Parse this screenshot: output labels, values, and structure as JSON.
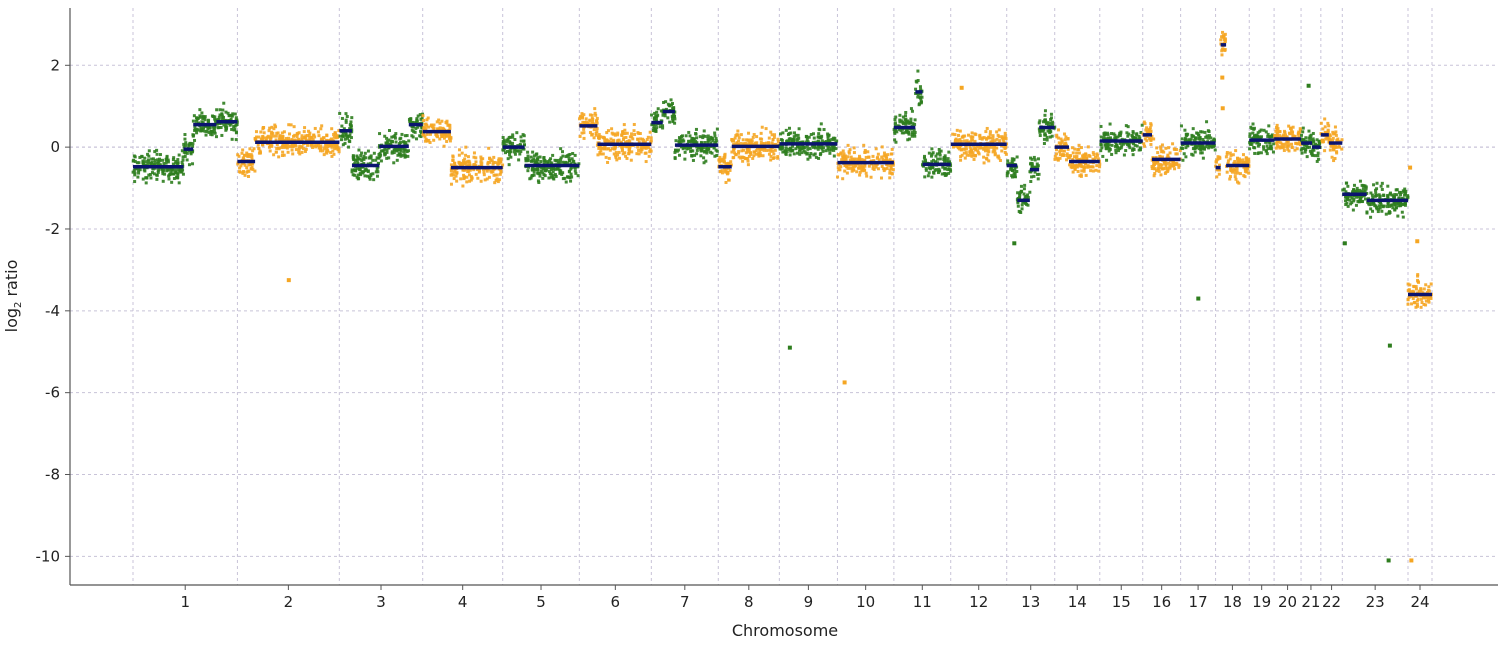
{
  "chart_data": {
    "type": "scatter",
    "title": "",
    "xlabel": "Chromosome",
    "ylabel_main": "log",
    "ylabel_sub": "2",
    "ylabel_tail": " ratio",
    "ylim": [
      -10.7,
      3.4
    ],
    "yticks": [
      2,
      0,
      -2,
      -4,
      -6,
      -8,
      -10
    ],
    "ytick_labels": [
      "2",
      "0",
      "-2",
      "-4",
      "-6",
      "-8",
      "-10"
    ],
    "grid": true,
    "x_unit": "genomic position (Mb, concatenated)",
    "chromosomes": [
      {
        "label": "1",
        "start": 0,
        "end": 248
      },
      {
        "label": "2",
        "start": 248,
        "end": 490
      },
      {
        "label": "3",
        "start": 490,
        "end": 688
      },
      {
        "label": "4",
        "start": 688,
        "end": 878
      },
      {
        "label": "5",
        "start": 878,
        "end": 1060
      },
      {
        "label": "6",
        "start": 1060,
        "end": 1231
      },
      {
        "label": "7",
        "start": 1231,
        "end": 1390
      },
      {
        "label": "8",
        "start": 1390,
        "end": 1535
      },
      {
        "label": "9",
        "start": 1535,
        "end": 1673
      },
      {
        "label": "10",
        "start": 1673,
        "end": 1807
      },
      {
        "label": "11",
        "start": 1807,
        "end": 1942
      },
      {
        "label": "12",
        "start": 1942,
        "end": 2075
      },
      {
        "label": "13",
        "start": 2075,
        "end": 2189
      },
      {
        "label": "14",
        "start": 2189,
        "end": 2296
      },
      {
        "label": "15",
        "start": 2296,
        "end": 2398
      },
      {
        "label": "16",
        "start": 2398,
        "end": 2488
      },
      {
        "label": "17",
        "start": 2488,
        "end": 2571
      },
      {
        "label": "18",
        "start": 2571,
        "end": 2651
      },
      {
        "label": "19",
        "start": 2651,
        "end": 2710
      },
      {
        "label": "20",
        "start": 2710,
        "end": 2774
      },
      {
        "label": "21",
        "start": 2774,
        "end": 2821
      },
      {
        "label": "22",
        "start": 2821,
        "end": 2872
      },
      {
        "label": "23",
        "start": 2872,
        "end": 3028
      },
      {
        "label": "24",
        "start": 3028,
        "end": 3085
      }
    ],
    "segments": [
      {
        "chr": "1",
        "start": 0,
        "end": 120,
        "value": -0.48
      },
      {
        "chr": "1",
        "start": 120,
        "end": 143,
        "value": -0.05
      },
      {
        "chr": "1",
        "start": 143,
        "end": 198,
        "value": 0.55
      },
      {
        "chr": "1",
        "start": 198,
        "end": 248,
        "value": 0.62
      },
      {
        "chr": "2",
        "start": 248,
        "end": 290,
        "value": -0.35
      },
      {
        "chr": "2",
        "start": 290,
        "end": 490,
        "value": 0.12
      },
      {
        "chr": "3",
        "start": 490,
        "end": 520,
        "value": 0.4
      },
      {
        "chr": "3",
        "start": 520,
        "end": 585,
        "value": -0.45
      },
      {
        "chr": "3",
        "start": 585,
        "end": 655,
        "value": 0.02
      },
      {
        "chr": "3",
        "start": 655,
        "end": 688,
        "value": 0.55
      },
      {
        "chr": "4",
        "start": 688,
        "end": 755,
        "value": 0.38
      },
      {
        "chr": "4",
        "start": 755,
        "end": 878,
        "value": -0.5
      },
      {
        "chr": "5",
        "start": 878,
        "end": 930,
        "value": 0.0
      },
      {
        "chr": "5",
        "start": 930,
        "end": 1060,
        "value": -0.45
      },
      {
        "chr": "6",
        "start": 1060,
        "end": 1103,
        "value": 0.52
      },
      {
        "chr": "6",
        "start": 1103,
        "end": 1231,
        "value": 0.07
      },
      {
        "chr": "7",
        "start": 1231,
        "end": 1258,
        "value": 0.6
      },
      {
        "chr": "7",
        "start": 1258,
        "end": 1287,
        "value": 0.87
      },
      {
        "chr": "7",
        "start": 1287,
        "end": 1390,
        "value": 0.05
      },
      {
        "chr": "8",
        "start": 1390,
        "end": 1422,
        "value": -0.48
      },
      {
        "chr": "8",
        "start": 1422,
        "end": 1535,
        "value": 0.02
      },
      {
        "chr": "9",
        "start": 1535,
        "end": 1673,
        "value": 0.08
      },
      {
        "chr": "10",
        "start": 1673,
        "end": 1807,
        "value": -0.38
      },
      {
        "chr": "11",
        "start": 1807,
        "end": 1858,
        "value": 0.48
      },
      {
        "chr": "11",
        "start": 1858,
        "end": 1875,
        "value": 1.35
      },
      {
        "chr": "11",
        "start": 1875,
        "end": 1942,
        "value": -0.42
      },
      {
        "chr": "12",
        "start": 1942,
        "end": 2075,
        "value": 0.07
      },
      {
        "chr": "13",
        "start": 2075,
        "end": 2100,
        "value": -0.45
      },
      {
        "chr": "13",
        "start": 2100,
        "end": 2130,
        "value": -1.3
      },
      {
        "chr": "13",
        "start": 2130,
        "end": 2152,
        "value": -0.55
      },
      {
        "chr": "13",
        "start": 2152,
        "end": 2189,
        "value": 0.48
      },
      {
        "chr": "14",
        "start": 2189,
        "end": 2223,
        "value": 0.0
      },
      {
        "chr": "14",
        "start": 2223,
        "end": 2296,
        "value": -0.35
      },
      {
        "chr": "15",
        "start": 2296,
        "end": 2398,
        "value": 0.15
      },
      {
        "chr": "16",
        "start": 2398,
        "end": 2420,
        "value": 0.3
      },
      {
        "chr": "16",
        "start": 2420,
        "end": 2488,
        "value": -0.3
      },
      {
        "chr": "17",
        "start": 2488,
        "end": 2571,
        "value": 0.1
      },
      {
        "chr": "18",
        "start": 2571,
        "end": 2583,
        "value": -0.5
      },
      {
        "chr": "18",
        "start": 2583,
        "end": 2596,
        "value": 2.5
      },
      {
        "chr": "18",
        "start": 2596,
        "end": 2651,
        "value": -0.45
      },
      {
        "chr": "19",
        "start": 2651,
        "end": 2710,
        "value": 0.17
      },
      {
        "chr": "20",
        "start": 2710,
        "end": 2774,
        "value": 0.2
      },
      {
        "chr": "21",
        "start": 2774,
        "end": 2800,
        "value": 0.1
      },
      {
        "chr": "21",
        "start": 2800,
        "end": 2821,
        "value": 0.0
      },
      {
        "chr": "22",
        "start": 2821,
        "end": 2840,
        "value": 0.3
      },
      {
        "chr": "22",
        "start": 2840,
        "end": 2872,
        "value": 0.1
      },
      {
        "chr": "23",
        "start": 2872,
        "end": 2930,
        "value": -1.15
      },
      {
        "chr": "23",
        "start": 2930,
        "end": 3028,
        "value": -1.3
      },
      {
        "chr": "24",
        "start": 3028,
        "end": 3085,
        "value": -3.6
      }
    ],
    "outliers": [
      {
        "x": 370,
        "y": -3.25
      },
      {
        "x": 1560,
        "y": -4.9
      },
      {
        "x": 1690,
        "y": -5.75
      },
      {
        "x": 1968,
        "y": 1.45
      },
      {
        "x": 2093,
        "y": -2.35
      },
      {
        "x": 2530,
        "y": -3.7
      },
      {
        "x": 2587,
        "y": 1.7
      },
      {
        "x": 2590,
        "y": 2.7
      },
      {
        "x": 2588,
        "y": 0.95
      },
      {
        "x": 2792,
        "y": 1.5
      },
      {
        "x": 2878,
        "y": -2.35
      },
      {
        "x": 2985,
        "y": -4.85
      },
      {
        "x": 2982,
        "y": -10.1
      },
      {
        "x": 3036,
        "y": -10.1
      },
      {
        "x": 3033,
        "y": -0.5
      },
      {
        "x": 3050,
        "y": -2.3
      }
    ],
    "colors": {
      "odd_chromosome_points": "#2e7d1e",
      "even_chromosome_points": "#f5a623",
      "segment_line": "#0b1470",
      "grid": "#c8c3d8",
      "axis": "#555555"
    }
  }
}
